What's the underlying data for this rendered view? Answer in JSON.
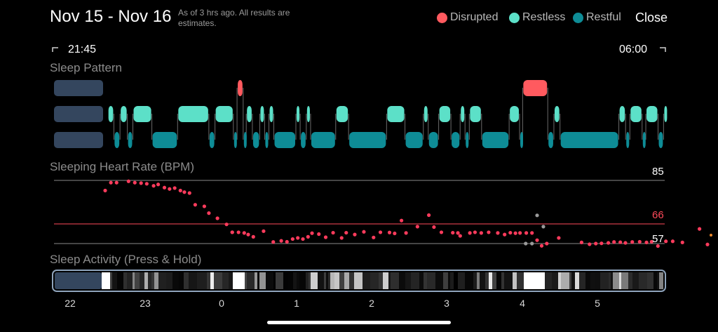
{
  "header": {
    "date_range": "Nov 15 - Nov 16",
    "note": "As of 3 hrs ago. All results are estimates.",
    "close_label": "Close"
  },
  "legend": [
    {
      "label": "Disrupted",
      "color": "#FF5A5F"
    },
    {
      "label": "Restless",
      "color": "#5CE0C8"
    },
    {
      "label": "Restful",
      "color": "#0E8C96"
    }
  ],
  "times": {
    "start": "21:45",
    "end": "06:00"
  },
  "sleep_pattern": {
    "title": "Sleep Pattern",
    "segments": [
      {
        "state": "restless",
        "start": 0.09,
        "end": 0.1
      },
      {
        "state": "restful",
        "start": 0.1,
        "end": 0.11
      },
      {
        "state": "restless",
        "start": 0.11,
        "end": 0.122
      },
      {
        "state": "restful",
        "start": 0.122,
        "end": 0.131
      },
      {
        "state": "restless",
        "start": 0.131,
        "end": 0.162
      },
      {
        "state": "restful",
        "start": 0.162,
        "end": 0.204
      },
      {
        "state": "restless",
        "start": 0.204,
        "end": 0.255
      },
      {
        "state": "restful",
        "start": 0.255,
        "end": 0.265
      },
      {
        "state": "restless",
        "start": 0.265,
        "end": 0.295
      },
      {
        "state": "restful",
        "start": 0.295,
        "end": 0.301
      },
      {
        "state": "disrupted",
        "start": 0.301,
        "end": 0.311
      },
      {
        "state": "restful",
        "start": 0.311,
        "end": 0.316
      },
      {
        "state": "restless",
        "start": 0.316,
        "end": 0.326
      },
      {
        "state": "restful",
        "start": 0.326,
        "end": 0.338
      },
      {
        "state": "restless",
        "start": 0.338,
        "end": 0.346
      },
      {
        "state": "restful",
        "start": 0.346,
        "end": 0.353
      },
      {
        "state": "restless",
        "start": 0.353,
        "end": 0.361
      },
      {
        "state": "restful",
        "start": 0.361,
        "end": 0.397
      },
      {
        "state": "restless",
        "start": 0.397,
        "end": 0.404
      },
      {
        "state": "restful",
        "start": 0.404,
        "end": 0.414
      },
      {
        "state": "restless",
        "start": 0.414,
        "end": 0.421
      },
      {
        "state": "restful",
        "start": 0.421,
        "end": 0.462
      },
      {
        "state": "restless",
        "start": 0.462,
        "end": 0.483
      },
      {
        "state": "restful",
        "start": 0.483,
        "end": 0.545
      },
      {
        "state": "restless",
        "start": 0.545,
        "end": 0.575
      },
      {
        "state": "restful",
        "start": 0.575,
        "end": 0.605
      },
      {
        "state": "restless",
        "start": 0.605,
        "end": 0.613
      },
      {
        "state": "restful",
        "start": 0.613,
        "end": 0.63
      },
      {
        "state": "restless",
        "start": 0.63,
        "end": 0.65
      },
      {
        "state": "restful",
        "start": 0.65,
        "end": 0.665
      },
      {
        "state": "restless",
        "start": 0.665,
        "end": 0.673
      },
      {
        "state": "restful",
        "start": 0.673,
        "end": 0.68
      },
      {
        "state": "restless",
        "start": 0.68,
        "end": 0.7
      },
      {
        "state": "restful",
        "start": 0.7,
        "end": 0.745
      },
      {
        "state": "restless",
        "start": 0.745,
        "end": 0.762
      },
      {
        "state": "restful",
        "start": 0.762,
        "end": 0.767
      },
      {
        "state": "disrupted",
        "start": 0.767,
        "end": 0.808
      },
      {
        "state": "restful",
        "start": 0.808,
        "end": 0.818
      },
      {
        "state": "restless",
        "start": 0.818,
        "end": 0.828
      },
      {
        "state": "restful",
        "start": 0.828,
        "end": 0.924
      },
      {
        "state": "restless",
        "start": 0.924,
        "end": 0.935
      },
      {
        "state": "restful",
        "start": 0.935,
        "end": 0.942
      },
      {
        "state": "restless",
        "start": 0.942,
        "end": 0.962
      },
      {
        "state": "restful",
        "start": 0.962,
        "end": 0.968
      },
      {
        "state": "restless",
        "start": 0.968,
        "end": 0.988
      },
      {
        "state": "restful",
        "start": 0.988,
        "end": 0.997
      },
      {
        "state": "restless",
        "start": 0.997,
        "end": 1.0
      }
    ]
  },
  "heart_rate": {
    "title": "Sleeping Heart Rate (BPM)",
    "max_label": "85",
    "avg_label": "66",
    "min_label": "57",
    "points": [
      {
        "t": 0.087,
        "v": 80.5
      },
      {
        "t": 0.097,
        "v": 84.0
      },
      {
        "t": 0.107,
        "v": 84.0
      },
      {
        "t": 0.128,
        "v": 84.6
      },
      {
        "t": 0.139,
        "v": 84.0
      },
      {
        "t": 0.15,
        "v": 83.8
      },
      {
        "t": 0.16,
        "v": 83.5
      },
      {
        "t": 0.172,
        "v": 82.6
      },
      {
        "t": 0.18,
        "v": 83.2
      },
      {
        "t": 0.191,
        "v": 81.8
      },
      {
        "t": 0.2,
        "v": 81.2
      },
      {
        "t": 0.209,
        "v": 81.6
      },
      {
        "t": 0.219,
        "v": 80.5
      },
      {
        "t": 0.226,
        "v": 79.8
      },
      {
        "t": 0.235,
        "v": 79.4
      },
      {
        "t": 0.245,
        "v": 74.2
      },
      {
        "t": 0.261,
        "v": 73.5
      },
      {
        "t": 0.269,
        "v": 70.5
      },
      {
        "t": 0.284,
        "v": 68.2
      },
      {
        "t": 0.3,
        "v": 65.5
      },
      {
        "t": 0.31,
        "v": 62.0
      },
      {
        "t": 0.321,
        "v": 62.0
      },
      {
        "t": 0.331,
        "v": 61.7
      },
      {
        "t": 0.338,
        "v": 61.0
      },
      {
        "t": 0.347,
        "v": 60.0
      },
      {
        "t": 0.365,
        "v": 62.5
      },
      {
        "t": 0.382,
        "v": 57.7
      },
      {
        "t": 0.396,
        "v": 58.2
      },
      {
        "t": 0.406,
        "v": 57.8
      },
      {
        "t": 0.416,
        "v": 59.0
      },
      {
        "t": 0.425,
        "v": 59.5
      },
      {
        "t": 0.434,
        "v": 59.0
      },
      {
        "t": 0.443,
        "v": 60.0
      },
      {
        "t": 0.45,
        "v": 61.6
      },
      {
        "t": 0.462,
        "v": 61.2
      },
      {
        "t": 0.474,
        "v": 59.8
      },
      {
        "t": 0.487,
        "v": 61.8
      },
      {
        "t": 0.502,
        "v": 59.5
      },
      {
        "t": 0.51,
        "v": 61.8
      },
      {
        "t": 0.525,
        "v": 61.0
      },
      {
        "t": 0.541,
        "v": 62.2
      },
      {
        "t": 0.558,
        "v": 59.7
      },
      {
        "t": 0.57,
        "v": 62.0
      },
      {
        "t": 0.586,
        "v": 61.9
      },
      {
        "t": 0.595,
        "v": 61.5
      },
      {
        "t": 0.607,
        "v": 67.2
      },
      {
        "t": 0.615,
        "v": 61.7
      },
      {
        "t": 0.635,
        "v": 64.5
      },
      {
        "t": 0.655,
        "v": 69.6
      },
      {
        "t": 0.664,
        "v": 64.3
      },
      {
        "t": 0.677,
        "v": 62.0
      },
      {
        "t": 0.697,
        "v": 61.8
      },
      {
        "t": 0.706,
        "v": 61.7
      },
      {
        "t": 0.71,
        "v": 60.4
      },
      {
        "t": 0.727,
        "v": 61.7
      },
      {
        "t": 0.736,
        "v": 62.0
      },
      {
        "t": 0.747,
        "v": 61.7
      },
      {
        "t": 0.76,
        "v": 62.0
      },
      {
        "t": 0.776,
        "v": 61.7
      },
      {
        "t": 0.788,
        "v": 61.0
      },
      {
        "t": 0.798,
        "v": 61.8
      },
      {
        "t": 0.807,
        "v": 61.6
      },
      {
        "t": 0.815,
        "v": 61.7
      },
      {
        "t": 0.826,
        "v": 61.7
      },
      {
        "t": 0.836,
        "v": 61.7
      },
      {
        "t": 0.845,
        "v": 58.5
      },
      {
        "t": 0.853,
        "v": 56.0
      },
      {
        "t": 0.862,
        "v": 57.0
      },
      {
        "t": 0.883,
        "v": 59.5
      },
      {
        "t": 0.923,
        "v": 57.5
      },
      {
        "t": 0.937,
        "v": 56.7
      },
      {
        "t": 0.948,
        "v": 57.0
      },
      {
        "t": 0.958,
        "v": 57.1
      },
      {
        "t": 0.97,
        "v": 57.3
      },
      {
        "t": 0.98,
        "v": 57.7
      },
      {
        "t": 0.991,
        "v": 57.6
      },
      {
        "t": 1.0,
        "v": 57.3
      },
      {
        "t": 1.012,
        "v": 57.7
      },
      {
        "t": 1.025,
        "v": 57.8
      },
      {
        "t": 1.037,
        "v": 57.5
      },
      {
        "t": 1.046,
        "v": 57.8
      },
      {
        "t": 1.057,
        "v": 55.9
      },
      {
        "t": 1.071,
        "v": 58.0
      },
      {
        "t": 1.083,
        "v": 58.0
      },
      {
        "t": 1.1,
        "v": 57.5
      },
      {
        "t": 1.13,
        "v": 63.5
      },
      {
        "t": 1.144,
        "v": 56.6
      }
    ],
    "gray_points": [
      {
        "t": 0.31,
        "v": 62.0
      },
      {
        "t": 0.825,
        "v": 57.0
      },
      {
        "t": 0.836,
        "v": 57.0
      },
      {
        "t": 0.845,
        "v": 69.5
      },
      {
        "t": 0.856,
        "v": 64.5
      }
    ]
  },
  "activity": {
    "title": "Sleep Activity (Press & Hold)",
    "hour_labels": [
      "22",
      "23",
      "0",
      "1",
      "2",
      "3",
      "4",
      "5"
    ]
  }
}
